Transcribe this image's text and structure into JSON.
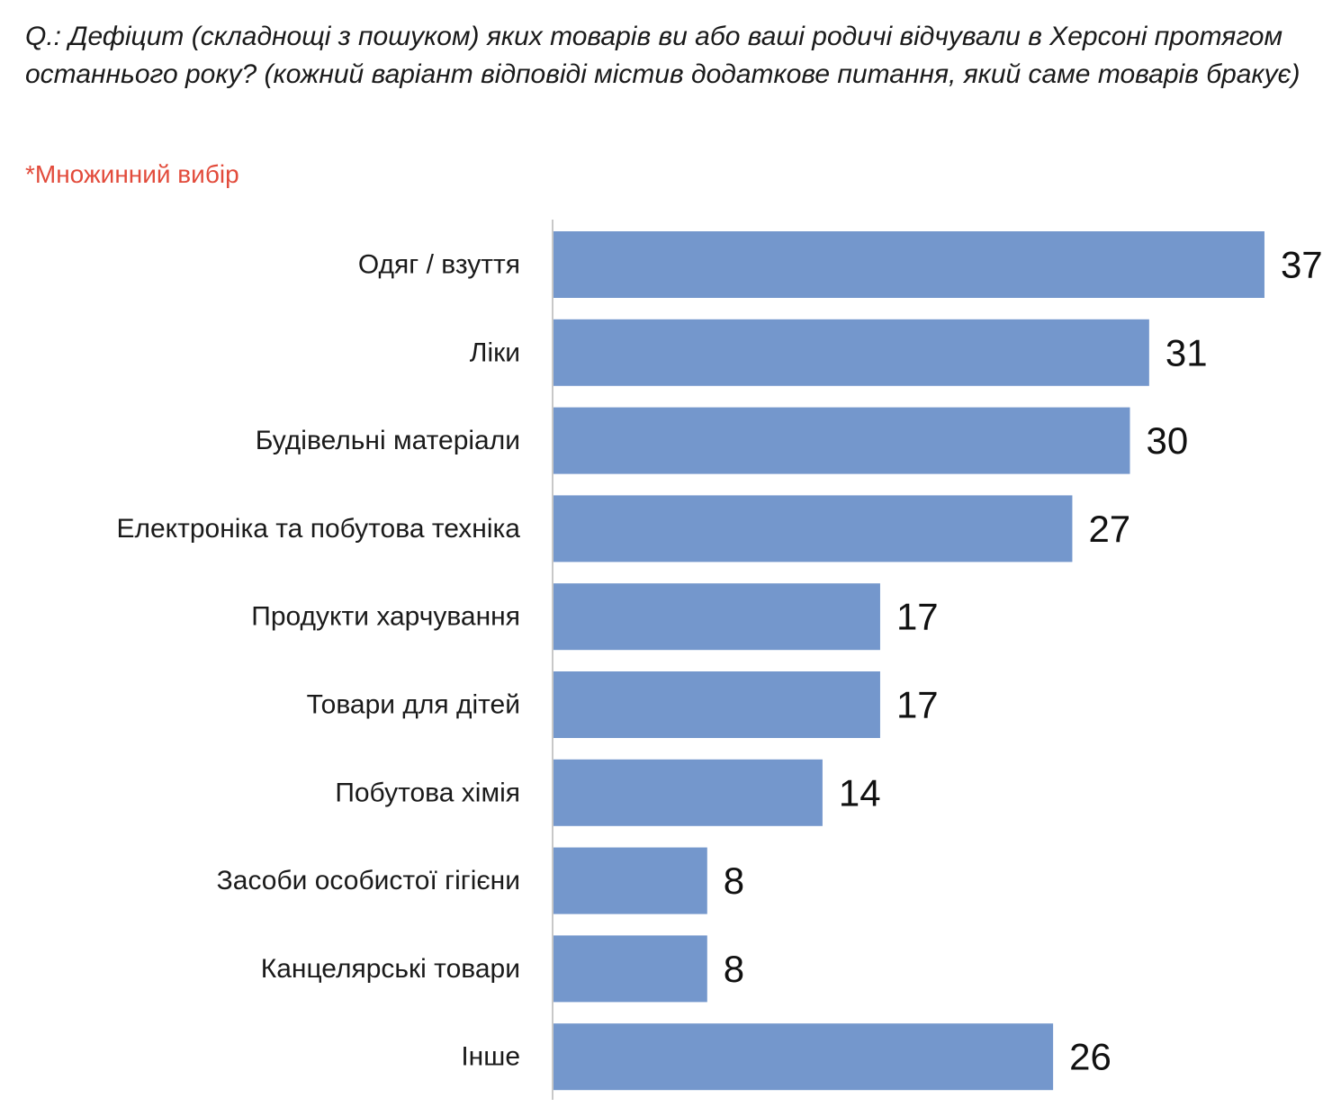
{
  "question": "Q.: Дефіцит (складнощі з пошуком) яких товарів ви або ваші родичі відчували в Херсоні протягом останнього року? (кожний варіант відповіді містив додаткове питання, який саме товарів бракує)",
  "note": "*Множинний вибір",
  "colors": {
    "bar": "#7497cc",
    "axis": "#c8c8c8",
    "note": "#e24b3b"
  },
  "chart_data": {
    "type": "bar",
    "orientation": "horizontal",
    "categories": [
      "Одяг / взуття",
      "Ліки",
      "Будівельні матеріали",
      "Електроніка та побутова техніка",
      "Продукти харчування",
      "Товари для дітей",
      "Побутова хімія",
      "Засоби особистої гігієни",
      "Канцелярські товари",
      "Інше"
    ],
    "values": [
      37,
      31,
      30,
      27,
      17,
      17,
      14,
      8,
      8,
      26
    ],
    "data_labels": [
      "37",
      "31",
      "30",
      "27",
      "17",
      "17",
      "14",
      "8",
      "8",
      "26"
    ],
    "grid": false,
    "legend": "none"
  }
}
